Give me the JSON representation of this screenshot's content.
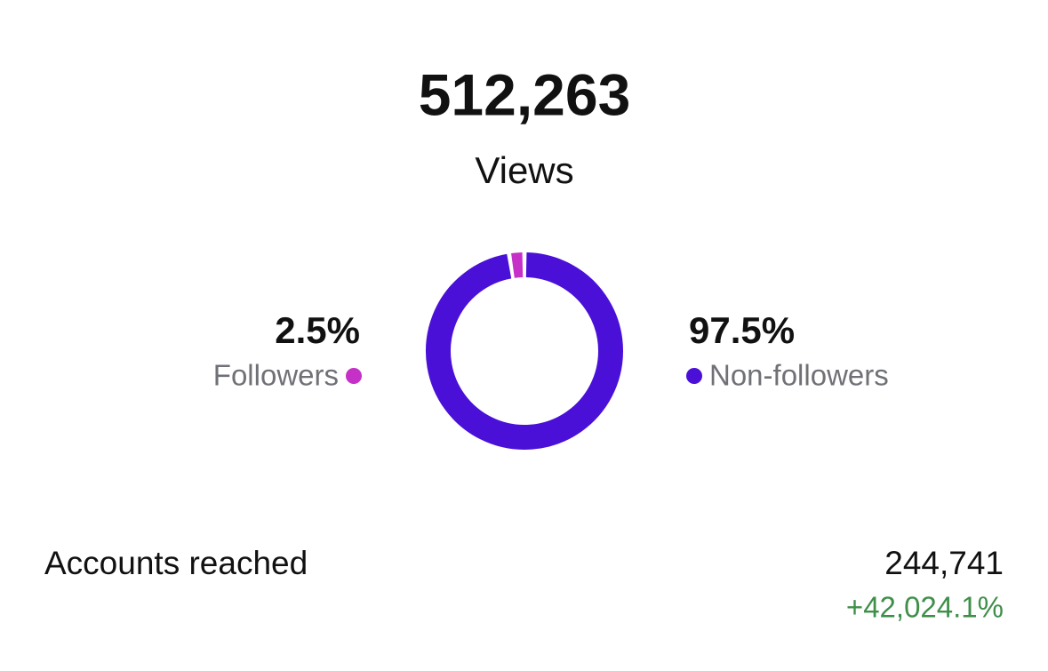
{
  "header": {
    "total": "512,263",
    "label": "Views"
  },
  "chart_data": {
    "type": "donut",
    "categories": [
      "Followers",
      "Non-followers"
    ],
    "values": [
      2.5,
      97.5
    ],
    "value_labels": [
      "2.5%",
      "97.5%"
    ],
    "colors": [
      "#c530c6",
      "#4a10d8"
    ]
  },
  "metrics": [
    {
      "label": "Accounts reached",
      "value": "244,741",
      "change": "+42,024.1%"
    }
  ]
}
